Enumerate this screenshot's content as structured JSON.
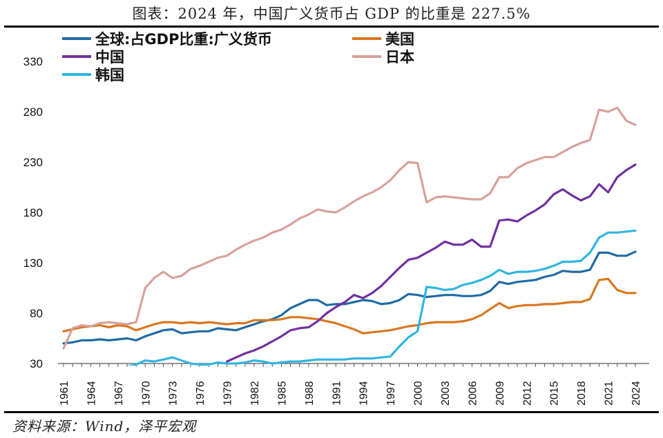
{
  "title": "图表：2024 年，中国广义货币占 GDP 的比重是 227.5%",
  "source": "资料来源：Wind，泽平宏观",
  "chart_data": {
    "type": "line",
    "title": "图表：2024 年，中国广义货币占 GDP 的比重是 227.5%",
    "xlabel": "",
    "ylabel": "",
    "ylim": [
      30,
      340
    ],
    "xlim": [
      1961,
      2024
    ],
    "yticks": [
      30,
      80,
      130,
      180,
      230,
      280,
      330
    ],
    "xticks": [
      1961,
      1964,
      1967,
      1970,
      1973,
      1976,
      1979,
      1982,
      1985,
      1988,
      1991,
      1994,
      1997,
      2000,
      2003,
      2006,
      2009,
      2012,
      2015,
      2018,
      2021,
      2024
    ],
    "grid": false,
    "legend": "top",
    "series": [
      {
        "name": "全球:占GDP比重:广义货币",
        "color": "#1f6aa5",
        "x": [
          1961,
          1962,
          1963,
          1964,
          1965,
          1966,
          1967,
          1968,
          1969,
          1970,
          1971,
          1972,
          1973,
          1974,
          1975,
          1976,
          1977,
          1978,
          1979,
          1980,
          1981,
          1982,
          1983,
          1984,
          1985,
          1986,
          1987,
          1988,
          1989,
          1990,
          1991,
          1992,
          1993,
          1994,
          1995,
          1996,
          1997,
          1998,
          1999,
          2000,
          2001,
          2002,
          2003,
          2004,
          2005,
          2006,
          2007,
          2008,
          2009,
          2010,
          2011,
          2012,
          2013,
          2014,
          2015,
          2016,
          2017,
          2018,
          2019,
          2020,
          2021,
          2022,
          2023,
          2024
        ],
        "values": [
          50,
          51,
          53,
          53,
          54,
          53,
          54,
          55,
          53,
          57,
          60,
          63,
          64,
          60,
          61,
          62,
          62,
          65,
          64,
          63,
          66,
          69,
          72,
          74,
          78,
          85,
          89,
          93,
          93,
          88,
          89,
          89,
          91,
          93,
          92,
          89,
          90,
          93,
          99,
          98,
          96,
          97,
          98,
          98,
          97,
          97,
          98,
          102,
          111,
          109,
          111,
          112,
          113,
          116,
          118,
          122,
          121,
          121,
          123,
          140,
          140,
          137,
          137,
          141
        ]
      },
      {
        "name": "美国",
        "color": "#d9761f",
        "x": [
          1961,
          1962,
          1963,
          1964,
          1965,
          1966,
          1967,
          1968,
          1969,
          1970,
          1971,
          1972,
          1973,
          1974,
          1975,
          1976,
          1977,
          1978,
          1979,
          1980,
          1981,
          1982,
          1983,
          1984,
          1985,
          1986,
          1987,
          1988,
          1989,
          1990,
          1991,
          1992,
          1993,
          1994,
          1995,
          1996,
          1997,
          1998,
          1999,
          2000,
          2001,
          2002,
          2003,
          2004,
          2005,
          2006,
          2007,
          2008,
          2009,
          2010,
          2011,
          2012,
          2013,
          2014,
          2015,
          2016,
          2017,
          2018,
          2019,
          2020,
          2021,
          2022,
          2023,
          2024
        ],
        "values": [
          62,
          64,
          66,
          67,
          68,
          66,
          68,
          67,
          63,
          66,
          69,
          71,
          71,
          70,
          71,
          70,
          71,
          70,
          69,
          70,
          70,
          73,
          73,
          73,
          74,
          76,
          76,
          75,
          74,
          72,
          70,
          67,
          64,
          60,
          61,
          62,
          63,
          65,
          67,
          68,
          70,
          71,
          71,
          71,
          72,
          74,
          78,
          84,
          90,
          85,
          87,
          88,
          88,
          89,
          89,
          90,
          91,
          91,
          94,
          113,
          114,
          103,
          100,
          100
        ]
      },
      {
        "name": "中国",
        "color": "#7030a0",
        "x": [
          1979,
          1980,
          1981,
          1982,
          1983,
          1984,
          1985,
          1986,
          1987,
          1988,
          1989,
          1990,
          1991,
          1992,
          1993,
          1994,
          1995,
          1996,
          1997,
          1998,
          1999,
          2000,
          2001,
          2002,
          2003,
          2004,
          2005,
          2006,
          2007,
          2008,
          2009,
          2010,
          2011,
          2012,
          2013,
          2014,
          2015,
          2016,
          2017,
          2018,
          2019,
          2020,
          2021,
          2022,
          2023,
          2024
        ],
        "values": [
          32,
          36,
          40,
          43,
          47,
          52,
          57,
          63,
          65,
          66,
          72,
          80,
          86,
          91,
          98,
          95,
          100,
          107,
          116,
          125,
          133,
          135,
          140,
          145,
          151,
          148,
          148,
          153,
          146,
          146,
          172,
          173,
          171,
          177,
          182,
          188,
          198,
          203,
          197,
          192,
          196,
          208,
          200,
          215,
          222,
          227.5
        ]
      },
      {
        "name": "日本",
        "color": "#d8a19b",
        "x": [
          1961,
          1962,
          1963,
          1964,
          1965,
          1966,
          1967,
          1968,
          1969,
          1970,
          1971,
          1972,
          1973,
          1974,
          1975,
          1976,
          1977,
          1978,
          1979,
          1980,
          1981,
          1982,
          1983,
          1984,
          1985,
          1986,
          1987,
          1988,
          1989,
          1990,
          1991,
          1992,
          1993,
          1994,
          1995,
          1996,
          1997,
          1998,
          1999,
          2000,
          2001,
          2002,
          2003,
          2004,
          2005,
          2006,
          2007,
          2008,
          2009,
          2010,
          2011,
          2012,
          2013,
          2014,
          2015,
          2016,
          2017,
          2018,
          2019,
          2020,
          2021,
          2022,
          2023,
          2024
        ],
        "values": [
          45,
          65,
          68,
          67,
          70,
          71,
          70,
          69,
          71,
          105,
          115,
          121,
          115,
          117,
          124,
          127,
          131,
          135,
          137,
          143,
          148,
          152,
          155,
          160,
          163,
          168,
          174,
          178,
          183,
          181,
          180,
          185,
          191,
          196,
          200,
          205,
          212,
          222,
          230,
          229,
          190,
          195,
          196,
          195,
          194,
          193,
          193,
          199,
          215,
          215,
          224,
          229,
          232,
          235,
          235,
          240,
          245,
          249,
          252,
          282,
          280,
          284,
          271,
          267
        ]
      },
      {
        "name": "韩国",
        "color": "#2fb5e0",
        "x": [
          1961,
          1962,
          1963,
          1964,
          1965,
          1966,
          1967,
          1968,
          1969,
          1970,
          1971,
          1972,
          1973,
          1974,
          1975,
          1976,
          1977,
          1978,
          1979,
          1980,
          1981,
          1982,
          1983,
          1984,
          1985,
          1986,
          1987,
          1988,
          1989,
          1990,
          1991,
          1992,
          1993,
          1994,
          1995,
          1996,
          1997,
          1998,
          1999,
          2000,
          2001,
          2002,
          2003,
          2004,
          2005,
          2006,
          2007,
          2008,
          2009,
          2010,
          2011,
          2012,
          2013,
          2014,
          2015,
          2016,
          2017,
          2018,
          2019,
          2020,
          2021,
          2022,
          2023,
          2024
        ],
        "values": [
          18,
          19,
          20,
          21,
          22,
          24,
          25,
          27,
          29,
          33,
          32,
          34,
          36,
          33,
          30,
          29,
          29,
          31,
          30,
          30,
          31,
          33,
          32,
          30,
          31,
          32,
          32,
          33,
          34,
          34,
          34,
          34,
          35,
          35,
          35,
          36,
          37,
          47,
          56,
          62,
          106,
          105,
          103,
          104,
          108,
          110,
          113,
          117,
          123,
          119,
          121,
          121,
          122,
          124,
          127,
          131,
          131,
          132,
          140,
          155,
          160,
          160,
          161,
          162
        ]
      }
    ]
  },
  "legend": [
    {
      "label": "全球:占GDP比重:广义货币",
      "color": "#1f6aa5"
    },
    {
      "label": "美国",
      "color": "#d9761f"
    },
    {
      "label": "中国",
      "color": "#7030a0"
    },
    {
      "label": "日本",
      "color": "#d8a19b"
    },
    {
      "label": "韩国",
      "color": "#2fb5e0"
    }
  ]
}
